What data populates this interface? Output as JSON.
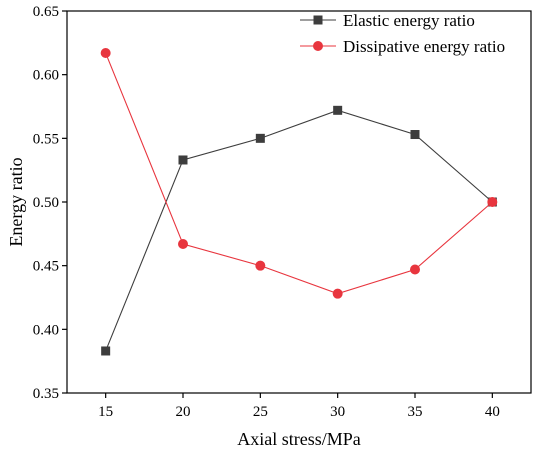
{
  "chart_data": {
    "type": "line",
    "x": [
      15,
      20,
      25,
      30,
      35,
      40
    ],
    "xlabel": "Axial stress/MPa",
    "ylabel": "Energy ratio",
    "xlim": [
      12.5,
      42.5
    ],
    "ylim": [
      0.35,
      0.65
    ],
    "xticks": [
      "15",
      "20",
      "25",
      "30",
      "35",
      "40"
    ],
    "yticks": [
      "0.35",
      "0.40",
      "0.45",
      "0.50",
      "0.55",
      "0.60",
      "0.65"
    ],
    "grid": false,
    "legend": "top-right",
    "series": [
      {
        "name": "Elastic energy ratio",
        "values": [
          0.383,
          0.533,
          0.55,
          0.572,
          0.553,
          0.5
        ],
        "color": "#3d3d3d",
        "marker": "square"
      },
      {
        "name": "Dissipative energy ratio",
        "values": [
          0.617,
          0.467,
          0.45,
          0.428,
          0.447,
          0.5
        ],
        "color": "#e8353e",
        "marker": "circle"
      }
    ]
  }
}
